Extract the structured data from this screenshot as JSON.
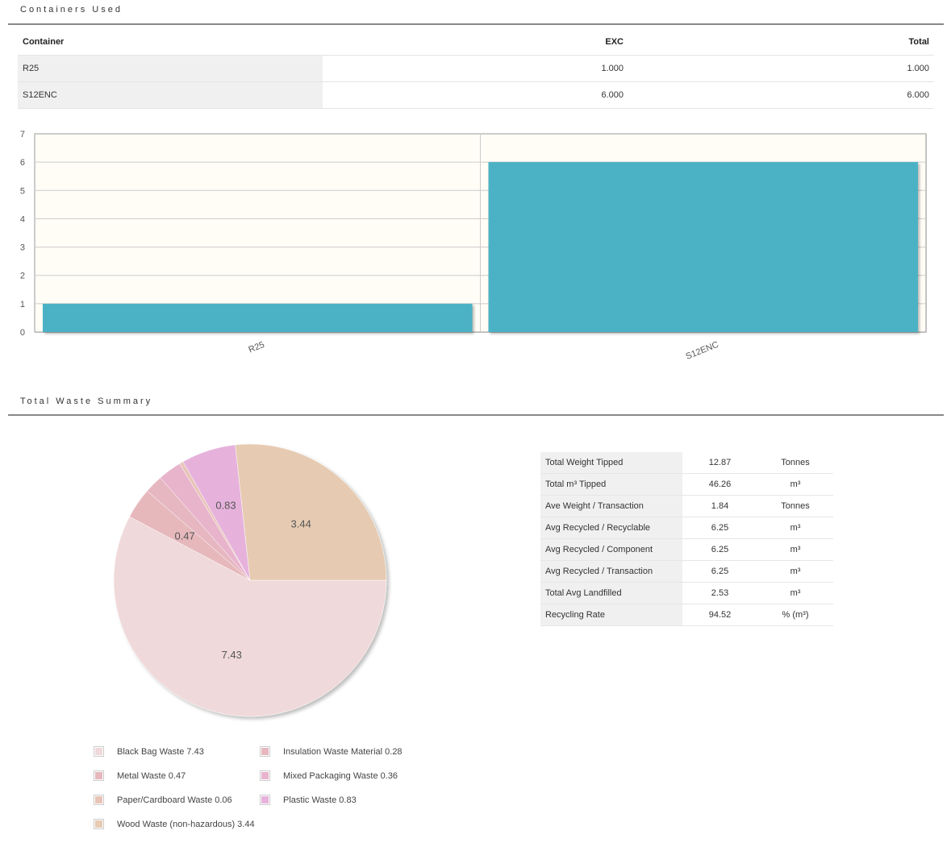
{
  "sections": {
    "containers_title": "Containers Used",
    "summary_title": "Total Waste Summary"
  },
  "containers_table": {
    "headers": [
      "Container",
      "EXC",
      "Total"
    ],
    "rows": [
      [
        "R25",
        "1.000",
        "1.000"
      ],
      [
        "S12ENC",
        "6.000",
        "6.000"
      ]
    ]
  },
  "summary_table": {
    "rows": [
      [
        "Total Weight Tipped",
        "12.87",
        "Tonnes"
      ],
      [
        "Total m³ Tipped",
        "46.26",
        "m³"
      ],
      [
        "Ave Weight / Transaction",
        "1.84",
        "Tonnes"
      ],
      [
        "Avg Recycled / Recyclable",
        "6.25",
        "m³"
      ],
      [
        "Avg Recycled / Component",
        "6.25",
        "m³"
      ],
      [
        "Avg Recycled / Transaction",
        "6.25",
        "m³"
      ],
      [
        "Total Avg Landfilled",
        "2.53",
        "m³"
      ],
      [
        "Recycling Rate",
        "94.52",
        "% (m³)"
      ]
    ]
  },
  "chart_data": [
    {
      "type": "bar",
      "categories": [
        "R25",
        "S12ENC"
      ],
      "values": [
        1,
        6
      ],
      "title": "",
      "xlabel": "",
      "ylabel": "",
      "ylim": [
        0,
        7
      ],
      "yticks": [
        "0",
        "1",
        "2",
        "3",
        "4",
        "5",
        "6",
        "7"
      ],
      "grid": true,
      "colors": {
        "bar": "#4bb2c5",
        "plot_bg": "#fffdf6",
        "grid": "#cccccc"
      }
    },
    {
      "type": "pie",
      "slices": [
        {
          "label": "Black Bag Waste",
          "value": 7.43,
          "color": "#f0d9da",
          "data_label": "7.43"
        },
        {
          "label": "Metal Waste",
          "value": 0.47,
          "color": "#e6b8bc",
          "data_label": "0.47"
        },
        {
          "label": "Paper/Cardboard Waste",
          "value": 0.06,
          "color": "#e8c4b8",
          "data_label": ""
        },
        {
          "label": "Wood Waste (non-hazardous)",
          "value": 3.44,
          "color": "#e6cbb2",
          "data_label": "3.44"
        },
        {
          "label": "Insulation Waste Material",
          "value": 0.28,
          "color": "#e6b7c0",
          "data_label": ""
        },
        {
          "label": "Mixed Packaging Waste",
          "value": 0.36,
          "color": "#e8b4cc",
          "data_label": ""
        },
        {
          "label": "Plastic Waste",
          "value": 0.83,
          "color": "#e6b2dc",
          "data_label": "0.83"
        }
      ],
      "draw_order": [
        0,
        1,
        4,
        5,
        2,
        6,
        3
      ],
      "legend": [
        {
          "text": "Black Bag Waste 7.43",
          "color": "#f0d9da"
        },
        {
          "text": "Metal Waste 0.47",
          "color": "#e6b8bc"
        },
        {
          "text": "Paper/Cardboard Waste 0.06",
          "color": "#e8c4b8"
        },
        {
          "text": "Wood Waste (non-hazardous) 3.44",
          "color": "#e6cbb2"
        },
        {
          "text": "Insulation Waste Material 0.28",
          "color": "#e6b7c0"
        },
        {
          "text": "Mixed Packaging Waste 0.36",
          "color": "#e8b4cc"
        },
        {
          "text": "Plastic Waste 0.83",
          "color": "#e6b2dc"
        }
      ]
    }
  ]
}
